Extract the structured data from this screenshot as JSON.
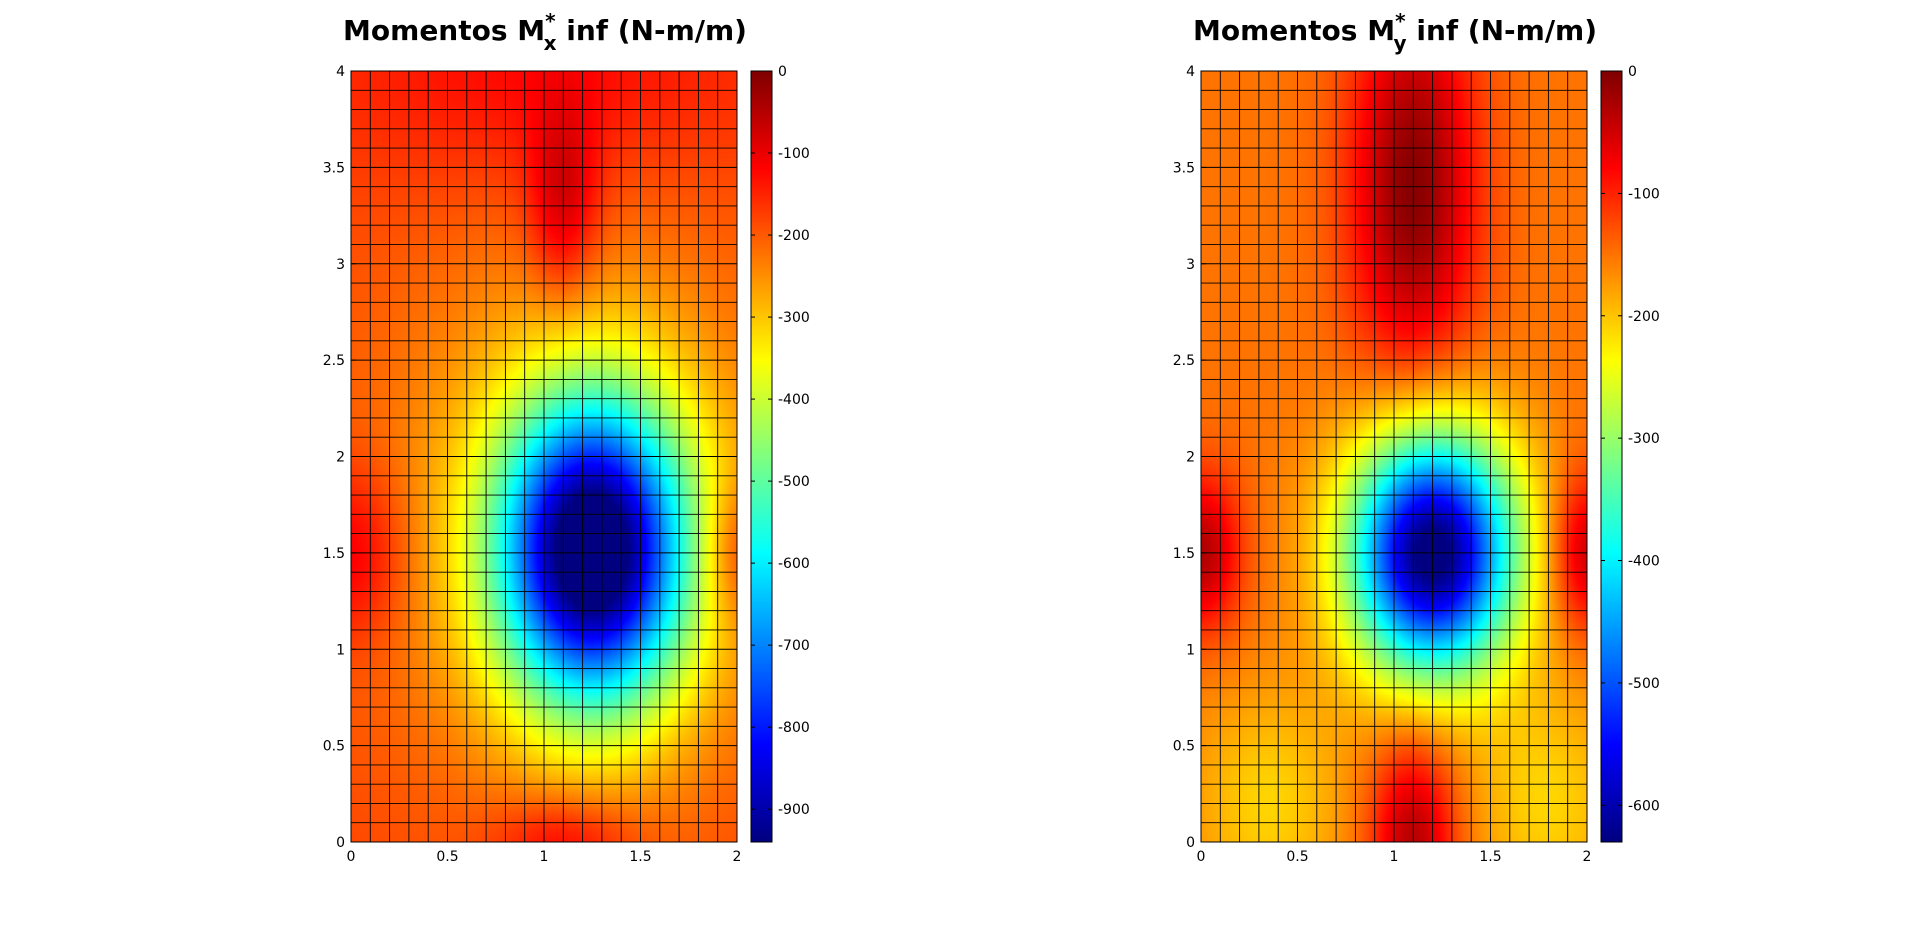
{
  "chart_data": [
    {
      "type": "heatmap",
      "title": {
        "prefix": "Momentos M",
        "sub": "x",
        "sup": "*",
        "suffix": " inf (N-m/m)"
      },
      "xlim": [
        0,
        2
      ],
      "ylim": [
        0,
        4
      ],
      "xticks": [
        "0",
        "0.5",
        "1",
        "1.5",
        "2"
      ],
      "xtick_values": [
        0,
        0.5,
        1,
        1.5,
        2
      ],
      "yticks": [
        "0",
        "0.5",
        "1",
        "1.5",
        "2",
        "2.5",
        "3",
        "3.5",
        "4"
      ],
      "ytick_values": [
        0,
        0.5,
        1,
        1.5,
        2,
        2.5,
        3,
        3.5,
        4
      ],
      "mesh": {
        "nx": 20,
        "ny": 40
      },
      "colormap": "jet",
      "clim": [
        -940,
        0
      ],
      "colorbar_ticks": [
        "0",
        "-100",
        "-200",
        "-300",
        "-400",
        "-500",
        "-600",
        "-700",
        "-800",
        "-900"
      ],
      "colorbar_tick_values": [
        0,
        -100,
        -200,
        -300,
        -400,
        -500,
        -600,
        -700,
        -800,
        -900
      ],
      "field": {
        "center": [
          1.25,
          1.5
        ],
        "min_value": -940,
        "features": "minimum near (1.25, 1.5); near-zero patch near (1.1, 3.0–3.5); near-zero at edges y=1.5 and bottom near x=1.1"
      },
      "grid": true
    },
    {
      "type": "heatmap",
      "title": {
        "prefix": "Momentos M",
        "sub": "y",
        "sup": "*",
        "suffix": " inf (N-m/m)"
      },
      "xlim": [
        0,
        2
      ],
      "ylim": [
        0,
        4
      ],
      "xticks": [
        "0",
        "0.5",
        "1",
        "1.5",
        "2"
      ],
      "xtick_values": [
        0,
        0.5,
        1,
        1.5,
        2
      ],
      "yticks": [
        "0",
        "0.5",
        "1",
        "1.5",
        "2",
        "2.5",
        "3",
        "3.5",
        "4"
      ],
      "ytick_values": [
        0,
        0.5,
        1,
        1.5,
        2,
        2.5,
        3,
        3.5,
        4
      ],
      "mesh": {
        "nx": 20,
        "ny": 40
      },
      "colormap": "jet",
      "clim": [
        -630,
        0
      ],
      "colorbar_ticks": [
        "0",
        "-100",
        "-200",
        "-300",
        "-400",
        "-500",
        "-600"
      ],
      "colorbar_tick_values": [
        0,
        -100,
        -200,
        -300,
        -400,
        -500,
        -600
      ],
      "field": {
        "center": [
          1.2,
          1.5
        ],
        "min_value": -630,
        "features": "minimum near (1.2, 1.5); near-zero band near x=1.1 for y 2.5–4 and at bottom; near-zero at edges y=1.5"
      },
      "grid": true
    }
  ]
}
